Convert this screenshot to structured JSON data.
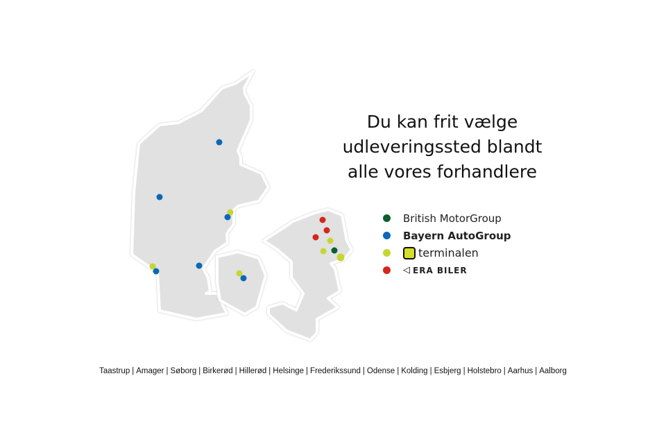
{
  "title_lines": [
    "Du kan frit vælge",
    "udleveringssted blandt",
    "alle vores forhandlere"
  ],
  "legend": [
    {
      "label": "British MotorGroup",
      "color": "#0b5e2d"
    },
    {
      "label": "Bayern AutoGroup",
      "color": "#0a68b8"
    },
    {
      "label": "terminalen",
      "color": "#c7d532",
      "icon": "terminalen-logo"
    },
    {
      "label": "ERA BILER",
      "color": "#d5261c",
      "icon": "era-logo"
    }
  ],
  "cities": [
    "Taastrup",
    "Amager",
    "Søborg",
    "Birkerød",
    "Hillerød",
    "Helsinge",
    "Frederikssund",
    "Odense",
    "Kolding",
    "Esbjerg",
    "Holstebro",
    "Aarhus",
    "Aalborg"
  ],
  "markers": [
    {
      "region": "Jutland",
      "dealer": "Bayern AutoGroup"
    },
    {
      "region": "Jutland",
      "dealer": "Bayern AutoGroup"
    },
    {
      "region": "Jutland",
      "dealer": "terminalen"
    },
    {
      "region": "Jutland",
      "dealer": "Bayern AutoGroup"
    },
    {
      "region": "Jutland",
      "dealer": "terminalen"
    },
    {
      "region": "Jutland",
      "dealer": "Bayern AutoGroup"
    },
    {
      "region": "Jutland",
      "dealer": "Bayern AutoGroup"
    },
    {
      "region": "Funen",
      "dealer": "terminalen"
    },
    {
      "region": "Funen",
      "dealer": "Bayern AutoGroup"
    },
    {
      "region": "Zealand",
      "dealer": "ERA BILER"
    },
    {
      "region": "Zealand",
      "dealer": "ERA BILER"
    },
    {
      "region": "Zealand",
      "dealer": "ERA BILER"
    },
    {
      "region": "Zealand",
      "dealer": "terminalen"
    },
    {
      "region": "Zealand",
      "dealer": "terminalen"
    },
    {
      "region": "Zealand",
      "dealer": "British MotorGroup"
    },
    {
      "region": "Zealand",
      "dealer": "terminalen"
    }
  ]
}
